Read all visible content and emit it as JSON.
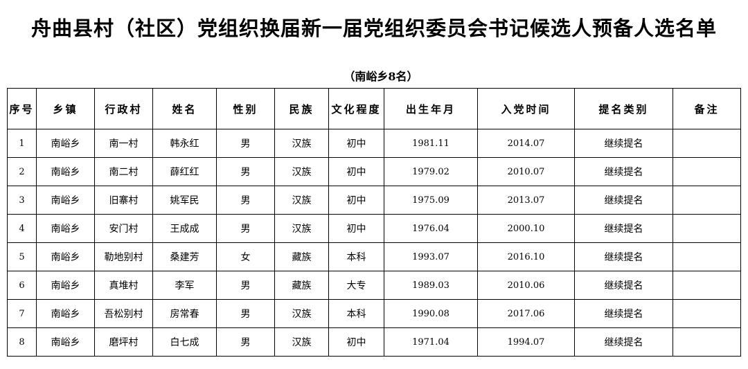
{
  "title": "舟曲县村（社区）党组织换届新一届党组织委员会书记候选人预备人选名单",
  "subtitle": "（南峪乡8名）",
  "table": {
    "headers": [
      "序号",
      "乡镇",
      "行政村",
      "姓名",
      "性别",
      "民族",
      "文化程度",
      "出生年月",
      "入党时间",
      "提名类别",
      "备注"
    ],
    "rows": [
      [
        "1",
        "南峪乡",
        "南一村",
        "韩永红",
        "男",
        "汉族",
        "初中",
        "1981.11",
        "2014.07",
        "继续提名",
        ""
      ],
      [
        "2",
        "南峪乡",
        "南二村",
        "薛红红",
        "男",
        "汉族",
        "初中",
        "1979.02",
        "2010.07",
        "继续提名",
        ""
      ],
      [
        "3",
        "南峪乡",
        "旧寨村",
        "姚军民",
        "男",
        "汉族",
        "初中",
        "1975.09",
        "2013.07",
        "继续提名",
        ""
      ],
      [
        "4",
        "南峪乡",
        "安门村",
        "王成成",
        "男",
        "汉族",
        "初中",
        "1976.04",
        "2000.10",
        "继续提名",
        ""
      ],
      [
        "5",
        "南峪乡",
        "勒地别村",
        "桑建芳",
        "女",
        "藏族",
        "本科",
        "1993.07",
        "2016.10",
        "继续提名",
        ""
      ],
      [
        "6",
        "南峪乡",
        "真堆村",
        "李军",
        "男",
        "藏族",
        "大专",
        "1989.03",
        "2010.06",
        "继续提名",
        ""
      ],
      [
        "7",
        "南峪乡",
        "吾松别村",
        "房常春",
        "男",
        "汉族",
        "本科",
        "1990.08",
        "2017.06",
        "继续提名",
        ""
      ],
      [
        "8",
        "南峪乡",
        "磨坪村",
        "白七成",
        "男",
        "汉族",
        "初中",
        "1971.04",
        "1994.07",
        "继续提名",
        ""
      ]
    ]
  }
}
